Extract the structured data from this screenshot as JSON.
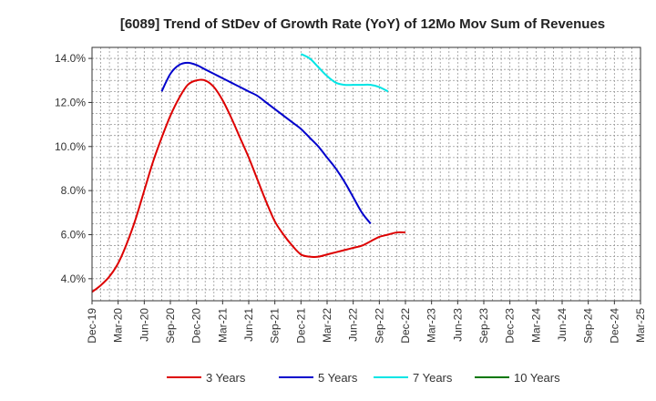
{
  "chart_data": {
    "type": "line",
    "title": "[6089]  Trend of StDev of Growth Rate (YoY) of 12Mo Mov Sum of Revenues",
    "xlabel": "",
    "ylabel": "",
    "ylim": [
      3.0,
      14.5
    ],
    "yticks": [
      4.0,
      6.0,
      8.0,
      10.0,
      12.0,
      14.0
    ],
    "ytick_labels": [
      "4.0%",
      "6.0%",
      "8.0%",
      "10.0%",
      "12.0%",
      "14.0%"
    ],
    "xticks": [
      "Dec-19",
      "Mar-20",
      "Jun-20",
      "Sep-20",
      "Dec-20",
      "Mar-21",
      "Jun-21",
      "Sep-21",
      "Dec-21",
      "Mar-22",
      "Jun-22",
      "Sep-22",
      "Dec-22",
      "Mar-23",
      "Jun-23",
      "Sep-23",
      "Dec-23",
      "Mar-24",
      "Jun-24",
      "Sep-24",
      "Dec-24",
      "Mar-25"
    ],
    "grid": true,
    "legend_position": "bottom",
    "series": [
      {
        "name": "3 Years",
        "color": "#dd0000",
        "points": [
          [
            0,
            3.4
          ],
          [
            1,
            3.7
          ],
          [
            2,
            4.1
          ],
          [
            3,
            4.7
          ],
          [
            4,
            5.6
          ],
          [
            5,
            6.7
          ],
          [
            6,
            8.0
          ],
          [
            7,
            9.3
          ],
          [
            8,
            10.4
          ],
          [
            9,
            11.4
          ],
          [
            10,
            12.2
          ],
          [
            11,
            12.8
          ],
          [
            12,
            13.0
          ],
          [
            13,
            13.0
          ],
          [
            14,
            12.7
          ],
          [
            15,
            12.1
          ],
          [
            16,
            11.3
          ],
          [
            17,
            10.4
          ],
          [
            18,
            9.5
          ],
          [
            19,
            8.5
          ],
          [
            20,
            7.5
          ],
          [
            21,
            6.6
          ],
          [
            22,
            6.0
          ],
          [
            23,
            5.5
          ],
          [
            24,
            5.1
          ],
          [
            25,
            5.0
          ],
          [
            26,
            5.0
          ],
          [
            27,
            5.1
          ],
          [
            28,
            5.2
          ],
          [
            29,
            5.3
          ],
          [
            30,
            5.4
          ],
          [
            31,
            5.5
          ],
          [
            32,
            5.7
          ],
          [
            33,
            5.9
          ],
          [
            34,
            6.0
          ],
          [
            35,
            6.1
          ],
          [
            36,
            6.1
          ]
        ]
      },
      {
        "name": "5 Years",
        "color": "#0000cc",
        "points": [
          [
            8,
            12.5
          ],
          [
            9,
            13.3
          ],
          [
            10,
            13.7
          ],
          [
            11,
            13.8
          ],
          [
            12,
            13.7
          ],
          [
            13,
            13.5
          ],
          [
            14,
            13.3
          ],
          [
            15,
            13.1
          ],
          [
            16,
            12.9
          ],
          [
            17,
            12.7
          ],
          [
            18,
            12.5
          ],
          [
            19,
            12.3
          ],
          [
            20,
            12.0
          ],
          [
            21,
            11.7
          ],
          [
            22,
            11.4
          ],
          [
            23,
            11.1
          ],
          [
            24,
            10.8
          ],
          [
            25,
            10.4
          ],
          [
            26,
            10.0
          ],
          [
            27,
            9.5
          ],
          [
            28,
            9.0
          ],
          [
            29,
            8.4
          ],
          [
            30,
            7.7
          ],
          [
            31,
            7.0
          ],
          [
            32,
            6.5
          ]
        ]
      },
      {
        "name": "7 Years",
        "color": "#00e5e5",
        "points": [
          [
            24,
            14.2
          ],
          [
            25,
            14.0
          ],
          [
            26,
            13.6
          ],
          [
            27,
            13.2
          ],
          [
            28,
            12.9
          ],
          [
            29,
            12.8
          ],
          [
            30,
            12.8
          ],
          [
            31,
            12.8
          ],
          [
            32,
            12.8
          ],
          [
            33,
            12.7
          ],
          [
            34,
            12.5
          ]
        ]
      },
      {
        "name": "10 Years",
        "color": "#007700",
        "points": []
      }
    ]
  }
}
